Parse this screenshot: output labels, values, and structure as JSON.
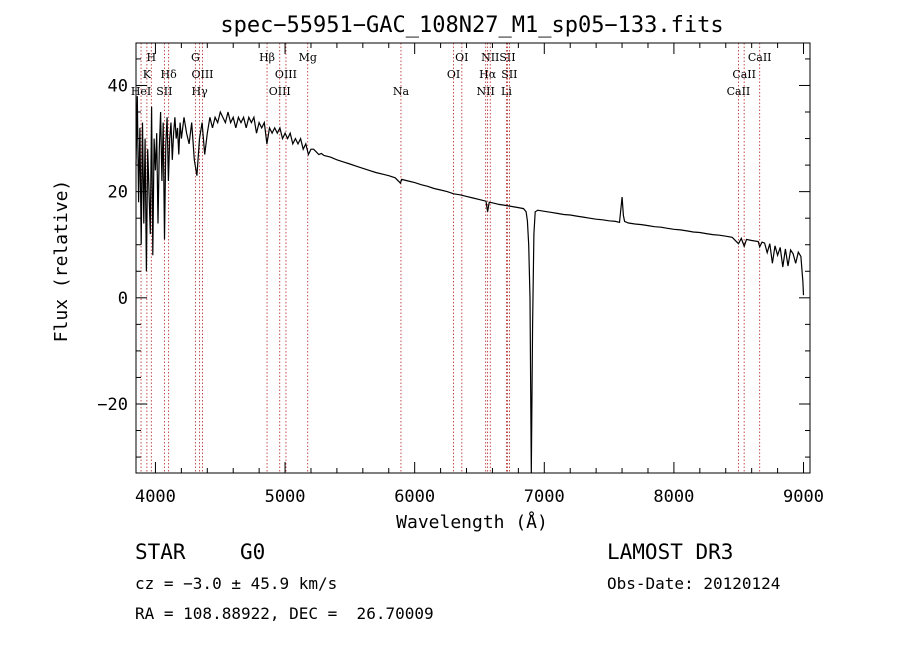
{
  "chart_data": {
    "type": "line",
    "title": "spec−55951−GAC_108N27_M1_sp05−133.fits",
    "xlabel": "Wavelength (Å)",
    "ylabel": "Flux (relative)",
    "xlim": [
      3850,
      9050
    ],
    "ylim": [
      -33,
      48
    ],
    "xticks": [
      4000,
      5000,
      6000,
      7000,
      8000,
      9000
    ],
    "xtick_labels": [
      "4000",
      "5000",
      "6000",
      "7000",
      "8000",
      "9000"
    ],
    "yticks": [
      -20,
      0,
      20,
      40
    ],
    "ytick_labels": [
      "−20",
      "0",
      "20",
      "40"
    ],
    "x_minor_step": 200,
    "y_minor_step": 5,
    "series": [
      {
        "name": "flux",
        "color": "#000000",
        "points": [
          [
            3850,
            25
          ],
          [
            3860,
            38
          ],
          [
            3870,
            18
          ],
          [
            3880,
            32
          ],
          [
            3890,
            10
          ],
          [
            3900,
            33
          ],
          [
            3910,
            14
          ],
          [
            3920,
            30
          ],
          [
            3930,
            5
          ],
          [
            3940,
            28
          ],
          [
            3950,
            20
          ],
          [
            3960,
            12
          ],
          [
            3970,
            36
          ],
          [
            3980,
            8
          ],
          [
            3990,
            30
          ],
          [
            4000,
            24
          ],
          [
            4010,
            31
          ],
          [
            4020,
            14
          ],
          [
            4030,
            28
          ],
          [
            4040,
            35
          ],
          [
            4050,
            22
          ],
          [
            4060,
            33
          ],
          [
            4070,
            11
          ],
          [
            4080,
            29
          ],
          [
            4090,
            34
          ],
          [
            4100,
            22
          ],
          [
            4110,
            30
          ],
          [
            4120,
            33
          ],
          [
            4130,
            26
          ],
          [
            4140,
            31
          ],
          [
            4150,
            34
          ],
          [
            4160,
            30
          ],
          [
            4170,
            32
          ],
          [
            4180,
            27
          ],
          [
            4190,
            33
          ],
          [
            4200,
            30
          ],
          [
            4220,
            34
          ],
          [
            4240,
            31
          ],
          [
            4260,
            29
          ],
          [
            4280,
            33
          ],
          [
            4300,
            26
          ],
          [
            4320,
            23
          ],
          [
            4340,
            30
          ],
          [
            4360,
            33
          ],
          [
            4380,
            27
          ],
          [
            4400,
            31
          ],
          [
            4420,
            34
          ],
          [
            4440,
            32
          ],
          [
            4460,
            34
          ],
          [
            4480,
            33
          ],
          [
            4500,
            35
          ],
          [
            4520,
            34
          ],
          [
            4540,
            33
          ],
          [
            4560,
            35
          ],
          [
            4580,
            33
          ],
          [
            4600,
            34
          ],
          [
            4620,
            32
          ],
          [
            4640,
            34
          ],
          [
            4660,
            33
          ],
          [
            4680,
            34
          ],
          [
            4700,
            32
          ],
          [
            4720,
            34
          ],
          [
            4740,
            33
          ],
          [
            4760,
            34
          ],
          [
            4780,
            31
          ],
          [
            4800,
            33
          ],
          [
            4820,
            32
          ],
          [
            4840,
            33
          ],
          [
            4860,
            29
          ],
          [
            4880,
            32
          ],
          [
            4900,
            31
          ],
          [
            4920,
            32
          ],
          [
            4940,
            31
          ],
          [
            4960,
            32
          ],
          [
            4980,
            30
          ],
          [
            5000,
            31
          ],
          [
            5020,
            30
          ],
          [
            5040,
            31
          ],
          [
            5060,
            29
          ],
          [
            5080,
            30
          ],
          [
            5100,
            29
          ],
          [
            5120,
            30
          ],
          [
            5140,
            28
          ],
          [
            5160,
            29
          ],
          [
            5180,
            27
          ],
          [
            5200,
            28
          ],
          [
            5220,
            28
          ],
          [
            5240,
            27.5
          ],
          [
            5260,
            27
          ],
          [
            5280,
            27.2
          ],
          [
            5300,
            26.8
          ],
          [
            5350,
            26.5
          ],
          [
            5400,
            26
          ],
          [
            5450,
            25.6
          ],
          [
            5500,
            25.2
          ],
          [
            5550,
            24.8
          ],
          [
            5600,
            24.4
          ],
          [
            5650,
            24
          ],
          [
            5700,
            23.6
          ],
          [
            5750,
            23.3
          ],
          [
            5800,
            23
          ],
          [
            5850,
            22.6
          ],
          [
            5890,
            21.6
          ],
          [
            5900,
            22.3
          ],
          [
            5950,
            22
          ],
          [
            6000,
            21.7
          ],
          [
            6050,
            21.3
          ],
          [
            6100,
            21
          ],
          [
            6150,
            20.6
          ],
          [
            6200,
            20.3
          ],
          [
            6250,
            20
          ],
          [
            6300,
            19.6
          ],
          [
            6350,
            19.4
          ],
          [
            6400,
            19.1
          ],
          [
            6450,
            18.8
          ],
          [
            6500,
            18.5
          ],
          [
            6550,
            18.2
          ],
          [
            6563,
            16.2
          ],
          [
            6575,
            18
          ],
          [
            6600,
            17.9
          ],
          [
            6650,
            17.6
          ],
          [
            6700,
            17.4
          ],
          [
            6750,
            17.2
          ],
          [
            6800,
            17
          ],
          [
            6840,
            16.8
          ],
          [
            6860,
            16.2
          ],
          [
            6870,
            14.5
          ],
          [
            6880,
            10
          ],
          [
            6890,
            0
          ],
          [
            6900,
            -33
          ],
          [
            6910,
            -5
          ],
          [
            6920,
            12
          ],
          [
            6930,
            16.2
          ],
          [
            6950,
            16.5
          ],
          [
            7000,
            16.3
          ],
          [
            7050,
            16.1
          ],
          [
            7100,
            15.9
          ],
          [
            7150,
            15.7
          ],
          [
            7200,
            15.6
          ],
          [
            7250,
            15.4
          ],
          [
            7300,
            15.2
          ],
          [
            7350,
            15
          ],
          [
            7400,
            14.8
          ],
          [
            7450,
            14.7
          ],
          [
            7500,
            14.5
          ],
          [
            7550,
            14.4
          ],
          [
            7580,
            14.2
          ],
          [
            7600,
            19
          ],
          [
            7610,
            15.5
          ],
          [
            7620,
            14.4
          ],
          [
            7650,
            14.1
          ],
          [
            7700,
            13.9
          ],
          [
            7750,
            13.8
          ],
          [
            7800,
            13.6
          ],
          [
            7850,
            13.4
          ],
          [
            7900,
            13.3
          ],
          [
            7950,
            13.1
          ],
          [
            8000,
            12.9
          ],
          [
            8050,
            12.8
          ],
          [
            8100,
            12.6
          ],
          [
            8150,
            12.4
          ],
          [
            8200,
            12.3
          ],
          [
            8250,
            12.1
          ],
          [
            8300,
            11.9
          ],
          [
            8350,
            11.8
          ],
          [
            8400,
            11.6
          ],
          [
            8450,
            11.4
          ],
          [
            8498,
            10.2
          ],
          [
            8520,
            11.2
          ],
          [
            8542,
            9.7
          ],
          [
            8560,
            11
          ],
          [
            8600,
            10.8
          ],
          [
            8650,
            10.6
          ],
          [
            8662,
            9.6
          ],
          [
            8680,
            10.5
          ],
          [
            8700,
            10.3
          ],
          [
            8720,
            8.5
          ],
          [
            8740,
            10.2
          ],
          [
            8760,
            6.5
          ],
          [
            8780,
            9.8
          ],
          [
            8800,
            8
          ],
          [
            8820,
            9.5
          ],
          [
            8840,
            5.8
          ],
          [
            8860,
            9.2
          ],
          [
            8880,
            6
          ],
          [
            8900,
            9
          ],
          [
            8920,
            8.3
          ],
          [
            8940,
            6.5
          ],
          [
            8960,
            8.6
          ],
          [
            8980,
            7.8
          ],
          [
            8995,
            3
          ],
          [
            9000,
            0.5
          ]
        ]
      }
    ],
    "line_markers": [
      {
        "label": "H",
        "x": 3968,
        "row": 0
      },
      {
        "label": "K",
        "x": 3934,
        "row": 1
      },
      {
        "label": "HeI",
        "x": 3889,
        "row": 2
      },
      {
        "label": "SII",
        "x": 4069,
        "row": 2
      },
      {
        "label": "Hδ",
        "x": 4102,
        "row": 1
      },
      {
        "label": "G",
        "x": 4308,
        "row": 0
      },
      {
        "label": "OIII",
        "x": 4363,
        "row": 1
      },
      {
        "label": "Hγ",
        "x": 4341,
        "row": 2
      },
      {
        "label": "Hβ",
        "x": 4861,
        "row": 0
      },
      {
        "label": "OIII",
        "x": 5007,
        "row": 1
      },
      {
        "label": "OIII",
        "x": 4959,
        "row": 2
      },
      {
        "label": "Mg",
        "x": 5175,
        "row": 0
      },
      {
        "label": "Na",
        "x": 5894,
        "row": 2
      },
      {
        "label": "OI",
        "x": 6364,
        "row": 0
      },
      {
        "label": "OI",
        "x": 6300,
        "row": 1
      },
      {
        "label": "NII",
        "x": 6583,
        "row": 0
      },
      {
        "label": "SII",
        "x": 6716,
        "row": 0
      },
      {
        "label": "Hα",
        "x": 6563,
        "row": 1
      },
      {
        "label": "SII",
        "x": 6731,
        "row": 1
      },
      {
        "label": "NII",
        "x": 6548,
        "row": 2
      },
      {
        "label": "Li",
        "x": 6708,
        "row": 2
      },
      {
        "label": "CaII",
        "x": 8662,
        "row": 0
      },
      {
        "label": "CaII",
        "x": 8542,
        "row": 1
      },
      {
        "label": "CaII",
        "x": 8498,
        "row": 2
      }
    ]
  },
  "info": {
    "object_class": "STAR",
    "subclass": "G0",
    "cz": "cz = −3.0 ± 45.9 km/s",
    "coords": "RA = 108.88922, DEC =  26.70009",
    "survey": "LAMOST DR3",
    "obs_date": "Obs-Date: 20120124"
  }
}
